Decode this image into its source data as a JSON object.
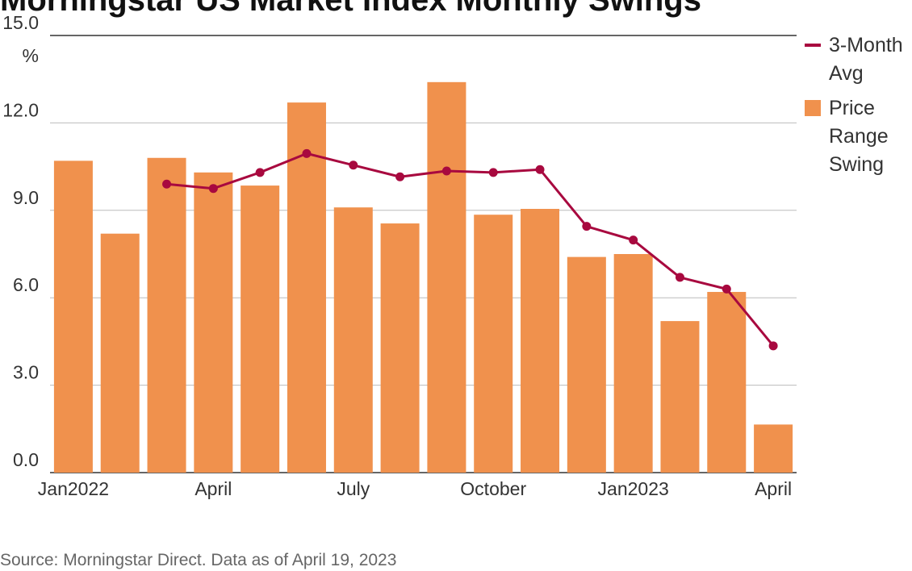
{
  "page": {
    "title": "Morningstar US Market Index Monthly Swings",
    "source": "Source: Morningstar Direct. Data as of April 19, 2023"
  },
  "colors": {
    "bar": "#F0914D",
    "line": "#A8093F",
    "grid": "#BBBBBB",
    "axis": "#333333"
  },
  "chart_data": {
    "type": "bar",
    "title": "Morningstar US Market Index Monthly Swings",
    "categories": [
      "Jan2022",
      "Feb2022",
      "Mar2022",
      "Apr2022",
      "May2022",
      "Jun2022",
      "Jul2022",
      "Aug2022",
      "Sep2022",
      "Oct2022",
      "Nov2022",
      "Dec2022",
      "Jan2023",
      "Feb2023",
      "Mar2023",
      "Apr2023"
    ],
    "x_tick_labels": [
      {
        "index": 0,
        "label": "Jan2022"
      },
      {
        "index": 3,
        "label": "April"
      },
      {
        "index": 6,
        "label": "July"
      },
      {
        "index": 9,
        "label": "October"
      },
      {
        "index": 12,
        "label": "Jan2023"
      },
      {
        "index": 15,
        "label": "April"
      }
    ],
    "y_ticks": [
      0,
      3,
      6,
      9,
      12,
      15
    ],
    "y_tick_labels": [
      "0.0",
      "3.0",
      "6.0",
      "9.0",
      "12.0",
      "15.0"
    ],
    "y_unit_label": "%",
    "ylim": [
      0,
      15
    ],
    "grid": true,
    "legend_position": "top-right",
    "series": [
      {
        "name": "Price Range Swing",
        "type": "bar",
        "values": [
          10.7,
          8.2,
          10.8,
          10.3,
          9.85,
          12.7,
          9.1,
          8.55,
          13.4,
          8.85,
          9.05,
          7.4,
          7.5,
          5.2,
          6.2,
          1.65
        ]
      },
      {
        "name": "3-Month Avg",
        "type": "line",
        "values": [
          null,
          null,
          9.9,
          9.75,
          10.3,
          10.95,
          10.55,
          10.15,
          10.35,
          10.3,
          10.4,
          8.45,
          7.98,
          6.7,
          6.3,
          4.35
        ]
      }
    ],
    "legend": [
      {
        "series": 1,
        "lines": [
          "3-Month",
          "Avg"
        ]
      },
      {
        "series": 0,
        "lines": [
          "Price",
          "Range",
          "Swing"
        ]
      }
    ]
  }
}
